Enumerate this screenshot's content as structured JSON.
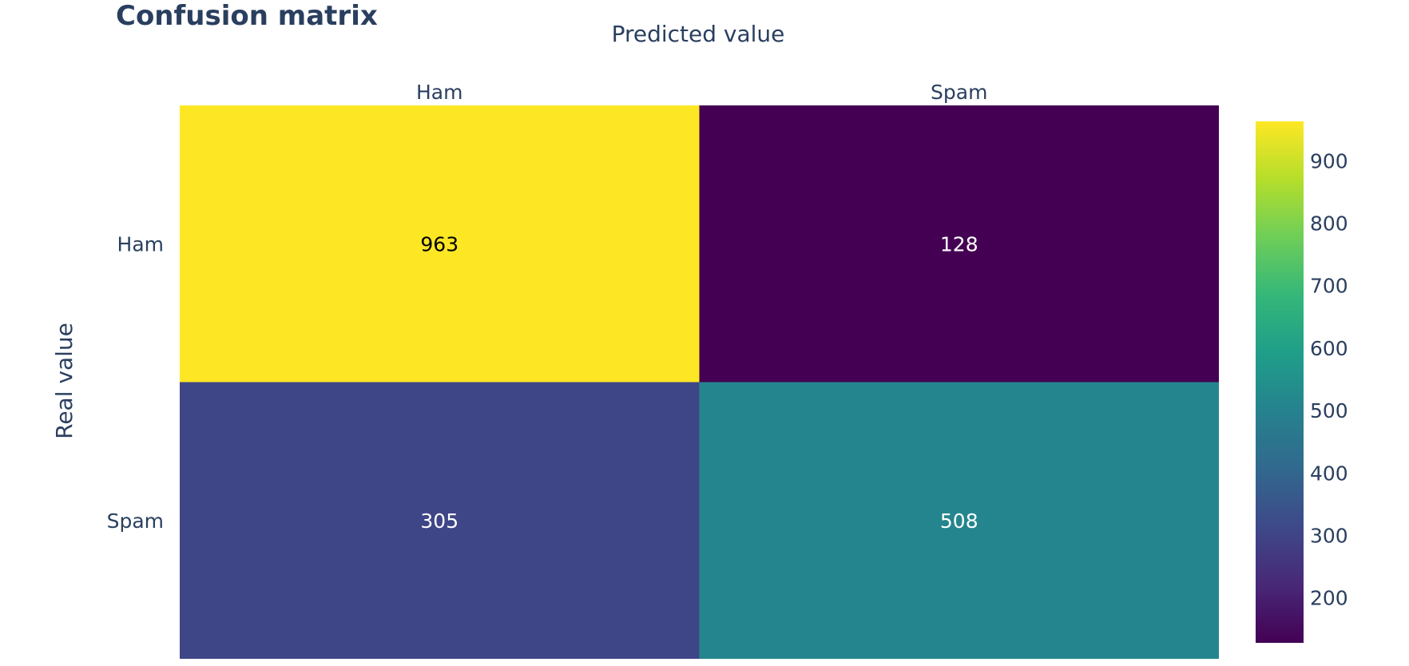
{
  "chart_data": {
    "type": "heatmap",
    "title": "Confusion matrix",
    "xlabel": "Predicted value",
    "ylabel": "Real value",
    "x_categories": [
      "Ham",
      "Spam"
    ],
    "y_categories": [
      "Ham",
      "Spam"
    ],
    "x_axis_side": "top",
    "values": [
      [
        963,
        128
      ],
      [
        305,
        508
      ]
    ],
    "colorscale": "viridis",
    "colorbar": {
      "range": [
        128,
        963
      ],
      "ticks": [
        200,
        300,
        400,
        500,
        600,
        700,
        800,
        900
      ],
      "position": "right"
    },
    "grid": false,
    "colors": {
      "text": "#2a3f5f",
      "viridis": [
        "#440154",
        "#482878",
        "#3e4989",
        "#31688e",
        "#26828e",
        "#1f9e89",
        "#35b779",
        "#6ece58",
        "#b5de2b",
        "#fde725"
      ]
    }
  }
}
